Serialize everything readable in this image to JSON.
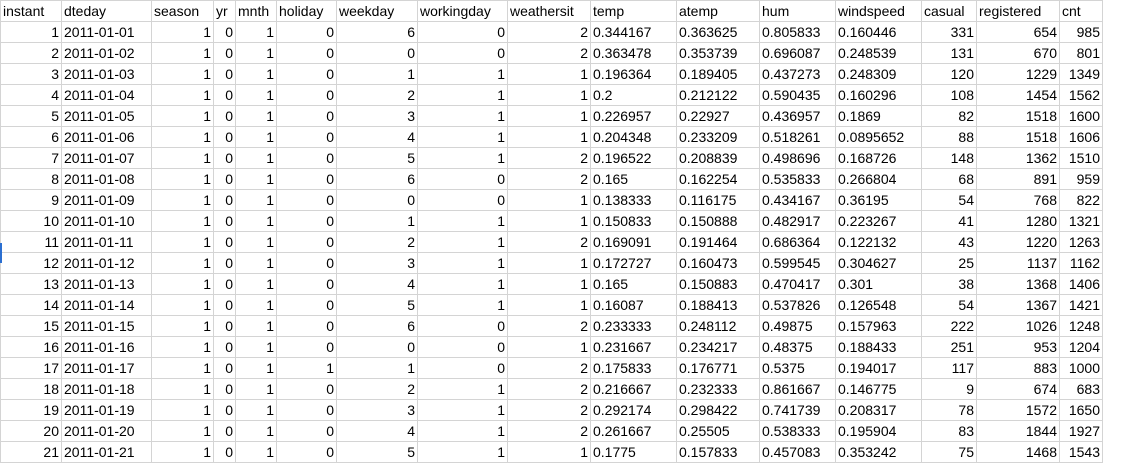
{
  "columns": [
    "instant",
    "dteday",
    "season",
    "yr",
    "mnth",
    "holiday",
    "weekday",
    "workingday",
    "weathersit",
    "temp",
    "atemp",
    "hum",
    "windspeed",
    "casual",
    "registered",
    "cnt"
  ],
  "rows": [
    [
      "1",
      "2011-01-01",
      "1",
      "0",
      "1",
      "0",
      "6",
      "0",
      "2",
      "0.344167",
      "0.363625",
      "0.805833",
      "0.160446",
      "331",
      "654",
      "985"
    ],
    [
      "2",
      "2011-01-02",
      "1",
      "0",
      "1",
      "0",
      "0",
      "0",
      "2",
      "0.363478",
      "0.353739",
      "0.696087",
      "0.248539",
      "131",
      "670",
      "801"
    ],
    [
      "3",
      "2011-01-03",
      "1",
      "0",
      "1",
      "0",
      "1",
      "1",
      "1",
      "0.196364",
      "0.189405",
      "0.437273",
      "0.248309",
      "120",
      "1229",
      "1349"
    ],
    [
      "4",
      "2011-01-04",
      "1",
      "0",
      "1",
      "0",
      "2",
      "1",
      "1",
      "0.2",
      "0.212122",
      "0.590435",
      "0.160296",
      "108",
      "1454",
      "1562"
    ],
    [
      "5",
      "2011-01-05",
      "1",
      "0",
      "1",
      "0",
      "3",
      "1",
      "1",
      "0.226957",
      "0.22927",
      "0.436957",
      "0.1869",
      "82",
      "1518",
      "1600"
    ],
    [
      "6",
      "2011-01-06",
      "1",
      "0",
      "1",
      "0",
      "4",
      "1",
      "1",
      "0.204348",
      "0.233209",
      "0.518261",
      "0.0895652",
      "88",
      "1518",
      "1606"
    ],
    [
      "7",
      "2011-01-07",
      "1",
      "0",
      "1",
      "0",
      "5",
      "1",
      "2",
      "0.196522",
      "0.208839",
      "0.498696",
      "0.168726",
      "148",
      "1362",
      "1510"
    ],
    [
      "8",
      "2011-01-08",
      "1",
      "0",
      "1",
      "0",
      "6",
      "0",
      "2",
      "0.165",
      "0.162254",
      "0.535833",
      "0.266804",
      "68",
      "891",
      "959"
    ],
    [
      "9",
      "2011-01-09",
      "1",
      "0",
      "1",
      "0",
      "0",
      "0",
      "1",
      "0.138333",
      "0.116175",
      "0.434167",
      "0.36195",
      "54",
      "768",
      "822"
    ],
    [
      "10",
      "2011-01-10",
      "1",
      "0",
      "1",
      "0",
      "1",
      "1",
      "1",
      "0.150833",
      "0.150888",
      "0.482917",
      "0.223267",
      "41",
      "1280",
      "1321"
    ],
    [
      "11",
      "2011-01-11",
      "1",
      "0",
      "1",
      "0",
      "2",
      "1",
      "2",
      "0.169091",
      "0.191464",
      "0.686364",
      "0.122132",
      "43",
      "1220",
      "1263"
    ],
    [
      "12",
      "2011-01-12",
      "1",
      "0",
      "1",
      "0",
      "3",
      "1",
      "1",
      "0.172727",
      "0.160473",
      "0.599545",
      "0.304627",
      "25",
      "1137",
      "1162"
    ],
    [
      "13",
      "2011-01-13",
      "1",
      "0",
      "1",
      "0",
      "4",
      "1",
      "1",
      "0.165",
      "0.150883",
      "0.470417",
      "0.301",
      "38",
      "1368",
      "1406"
    ],
    [
      "14",
      "2011-01-14",
      "1",
      "0",
      "1",
      "0",
      "5",
      "1",
      "1",
      "0.16087",
      "0.188413",
      "0.537826",
      "0.126548",
      "54",
      "1367",
      "1421"
    ],
    [
      "15",
      "2011-01-15",
      "1",
      "0",
      "1",
      "0",
      "6",
      "0",
      "2",
      "0.233333",
      "0.248112",
      "0.49875",
      "0.157963",
      "222",
      "1026",
      "1248"
    ],
    [
      "16",
      "2011-01-16",
      "1",
      "0",
      "1",
      "0",
      "0",
      "0",
      "1",
      "0.231667",
      "0.234217",
      "0.48375",
      "0.188433",
      "251",
      "953",
      "1204"
    ],
    [
      "17",
      "2011-01-17",
      "1",
      "0",
      "1",
      "1",
      "1",
      "0",
      "2",
      "0.175833",
      "0.176771",
      "0.5375",
      "0.194017",
      "117",
      "883",
      "1000"
    ],
    [
      "18",
      "2011-01-18",
      "1",
      "0",
      "1",
      "0",
      "2",
      "1",
      "2",
      "0.216667",
      "0.232333",
      "0.861667",
      "0.146775",
      "9",
      "674",
      "683"
    ],
    [
      "19",
      "2011-01-19",
      "1",
      "0",
      "1",
      "0",
      "3",
      "1",
      "2",
      "0.292174",
      "0.298422",
      "0.741739",
      "0.208317",
      "78",
      "1572",
      "1650"
    ],
    [
      "20",
      "2011-01-20",
      "1",
      "0",
      "1",
      "0",
      "4",
      "1",
      "2",
      "0.261667",
      "0.25505",
      "0.538333",
      "0.195904",
      "83",
      "1844",
      "1927"
    ],
    [
      "21",
      "2011-01-21",
      "1",
      "0",
      "1",
      "0",
      "5",
      "1",
      "1",
      "0.1775",
      "0.157833",
      "0.457083",
      "0.353242",
      "75",
      "1468",
      "1543"
    ]
  ]
}
